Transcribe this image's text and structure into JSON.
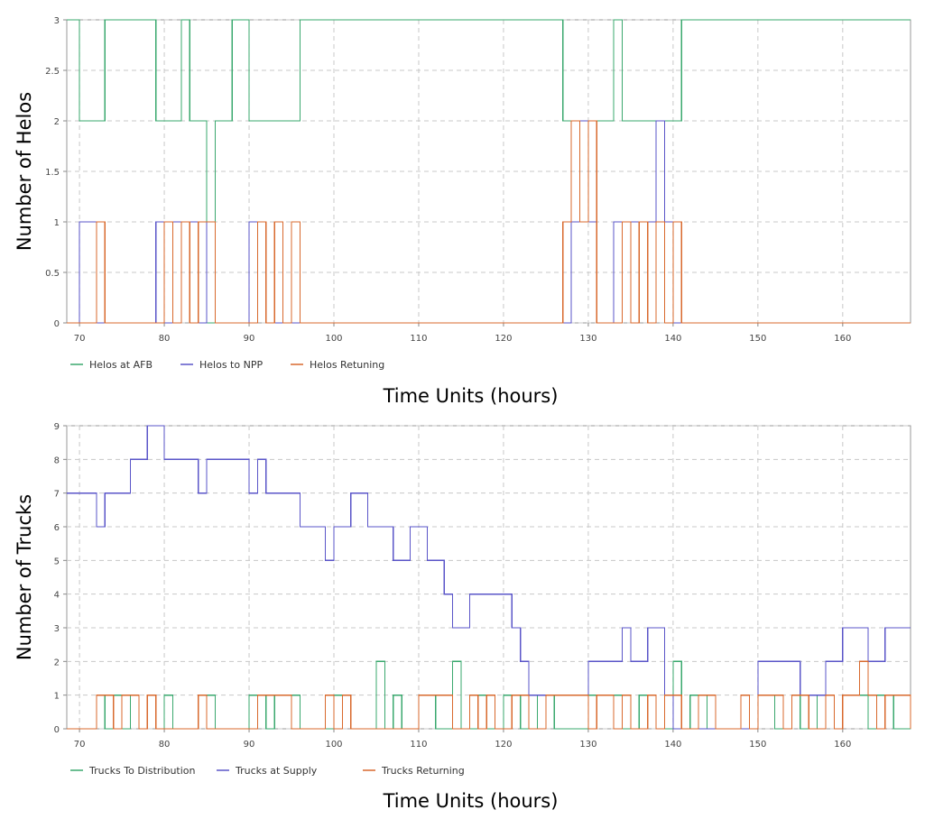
{
  "colors": {
    "green": "#3aa86e",
    "blue": "#5a55c8",
    "orange": "#d8692d"
  },
  "chart_data": [
    {
      "type": "line",
      "step": true,
      "xlabel": "Time Units (hours)",
      "ylabel": "Number of Helos",
      "xlim": [
        68.5,
        168
      ],
      "ylim": [
        0,
        3
      ],
      "xticks": [
        70,
        80,
        90,
        100,
        110,
        120,
        130,
        140,
        150,
        160
      ],
      "yticks": [
        0,
        0.5,
        1,
        1.5,
        2,
        2.5,
        3
      ],
      "ytick_labels": [
        "0",
        "0.5",
        "1",
        "1.5",
        "2",
        "2.5",
        "3"
      ],
      "grid": true,
      "legend_position": "bottom-left",
      "series": [
        {
          "name": "Helos at AFB",
          "color": "#3aa86e",
          "x": [
            68.5,
            70,
            73,
            79,
            82,
            83,
            85,
            86,
            88,
            90,
            96,
            127,
            129,
            133,
            134,
            141,
            168
          ],
          "y": [
            3,
            2,
            3,
            2,
            3,
            2,
            0,
            2,
            3,
            2,
            3,
            2,
            2,
            3,
            2,
            3,
            3
          ]
        },
        {
          "name": "Helos to NPP",
          "color": "#5a55c8",
          "x": [
            68.5,
            70,
            72,
            79,
            80,
            81,
            84,
            85,
            86,
            90,
            92,
            96,
            128,
            129,
            130,
            131,
            133,
            138,
            139,
            140,
            141,
            168
          ],
          "y": [
            0,
            1,
            0,
            1,
            0,
            1,
            0,
            1,
            0,
            1,
            0,
            0,
            1,
            2,
            1,
            0,
            1,
            2,
            1,
            0,
            0,
            0
          ]
        },
        {
          "name": "Helos Retuning",
          "color": "#d8692d",
          "x": [
            68.5,
            72,
            73,
            80,
            81,
            82,
            83,
            84,
            86,
            88,
            91,
            92,
            93,
            94,
            95,
            96,
            127,
            128,
            129,
            130,
            131,
            134,
            135,
            136,
            137,
            138,
            139,
            140,
            141,
            168
          ],
          "y": [
            0,
            1,
            0,
            1,
            0,
            1,
            0,
            1,
            0,
            0,
            1,
            0,
            1,
            0,
            1,
            0,
            1,
            2,
            1,
            2,
            0,
            1,
            0,
            1,
            0,
            1,
            0,
            1,
            0,
            0
          ]
        }
      ]
    },
    {
      "type": "line",
      "step": true,
      "xlabel": "Time Units (hours)",
      "ylabel": "Number of Trucks",
      "xlim": [
        68.5,
        168
      ],
      "ylim": [
        0,
        9
      ],
      "xticks": [
        70,
        80,
        90,
        100,
        110,
        120,
        130,
        140,
        150,
        160
      ],
      "yticks": [
        0,
        1,
        2,
        3,
        4,
        5,
        6,
        7,
        8,
        9
      ],
      "ytick_labels": [
        "0",
        "1",
        "2",
        "3",
        "4",
        "5",
        "6",
        "7",
        "8",
        "9"
      ],
      "grid": true,
      "legend_position": "bottom-left",
      "series": [
        {
          "name": "Trucks To Distribution",
          "color": "#3aa86e",
          "x": [
            68.5,
            72,
            73,
            74,
            75,
            76,
            77,
            78,
            79,
            80,
            81,
            84,
            86,
            88,
            90,
            92,
            93,
            96,
            98,
            100,
            102,
            104,
            105,
            106,
            107,
            108,
            110,
            112,
            114,
            115,
            117,
            118,
            120,
            122,
            124,
            126,
            130,
            134,
            136,
            138,
            140,
            141,
            142,
            143,
            144,
            145,
            147,
            150,
            152,
            154,
            155,
            157,
            159,
            160,
            163,
            164,
            166,
            168
          ],
          "y": [
            0,
            1,
            0,
            1,
            0,
            1,
            0,
            1,
            0,
            1,
            0,
            1,
            0,
            0,
            1,
            0,
            1,
            0,
            0,
            1,
            0,
            0,
            2,
            0,
            1,
            0,
            1,
            0,
            2,
            0,
            1,
            0,
            1,
            0,
            1,
            0,
            1,
            0,
            1,
            0,
            2,
            0,
            1,
            0,
            1,
            0,
            0,
            1,
            0,
            1,
            0,
            1,
            0,
            1,
            0,
            1,
            0,
            0
          ]
        },
        {
          "name": "Trucks at Supply",
          "color": "#5a55c8",
          "x": [
            68.5,
            72,
            73,
            74,
            76,
            78,
            79,
            80,
            84,
            85,
            90,
            91,
            92,
            93,
            96,
            99,
            100,
            101,
            102,
            104,
            107,
            109,
            111,
            113,
            114,
            116,
            118,
            121,
            122,
            123,
            125,
            126,
            130,
            134,
            135,
            137,
            139,
            140,
            141,
            150,
            155,
            156,
            158,
            160,
            163,
            165,
            168
          ],
          "y": [
            7,
            6,
            7,
            7,
            8,
            9,
            9,
            8,
            7,
            8,
            7,
            8,
            7,
            7,
            6,
            5,
            6,
            6,
            7,
            6,
            5,
            6,
            5,
            4,
            3,
            4,
            4,
            3,
            2,
            1,
            1,
            1,
            2,
            3,
            2,
            3,
            1,
            0,
            0,
            2,
            1,
            1,
            2,
            3,
            2,
            3,
            3
          ]
        },
        {
          "name": "Trucks Returning",
          "color": "#d8692d",
          "x": [
            68.5,
            72,
            74,
            75,
            77,
            78,
            79,
            84,
            85,
            91,
            95,
            99,
            100,
            101,
            102,
            103,
            110,
            114,
            116,
            117,
            118,
            119,
            121,
            123,
            125,
            130,
            131,
            133,
            134,
            135,
            137,
            138,
            139,
            141,
            143,
            145,
            148,
            149,
            150,
            153,
            154,
            156,
            158,
            159,
            160,
            162,
            163,
            164,
            165,
            168
          ],
          "y": [
            0,
            1,
            0,
            1,
            0,
            1,
            0,
            1,
            0,
            1,
            0,
            1,
            0,
            1,
            0,
            0,
            1,
            0,
            1,
            0,
            1,
            0,
            1,
            0,
            1,
            0,
            1,
            0,
            1,
            0,
            1,
            0,
            1,
            0,
            1,
            0,
            1,
            0,
            1,
            0,
            1,
            0,
            1,
            0,
            1,
            2,
            1,
            0,
            1,
            0
          ]
        }
      ]
    }
  ]
}
